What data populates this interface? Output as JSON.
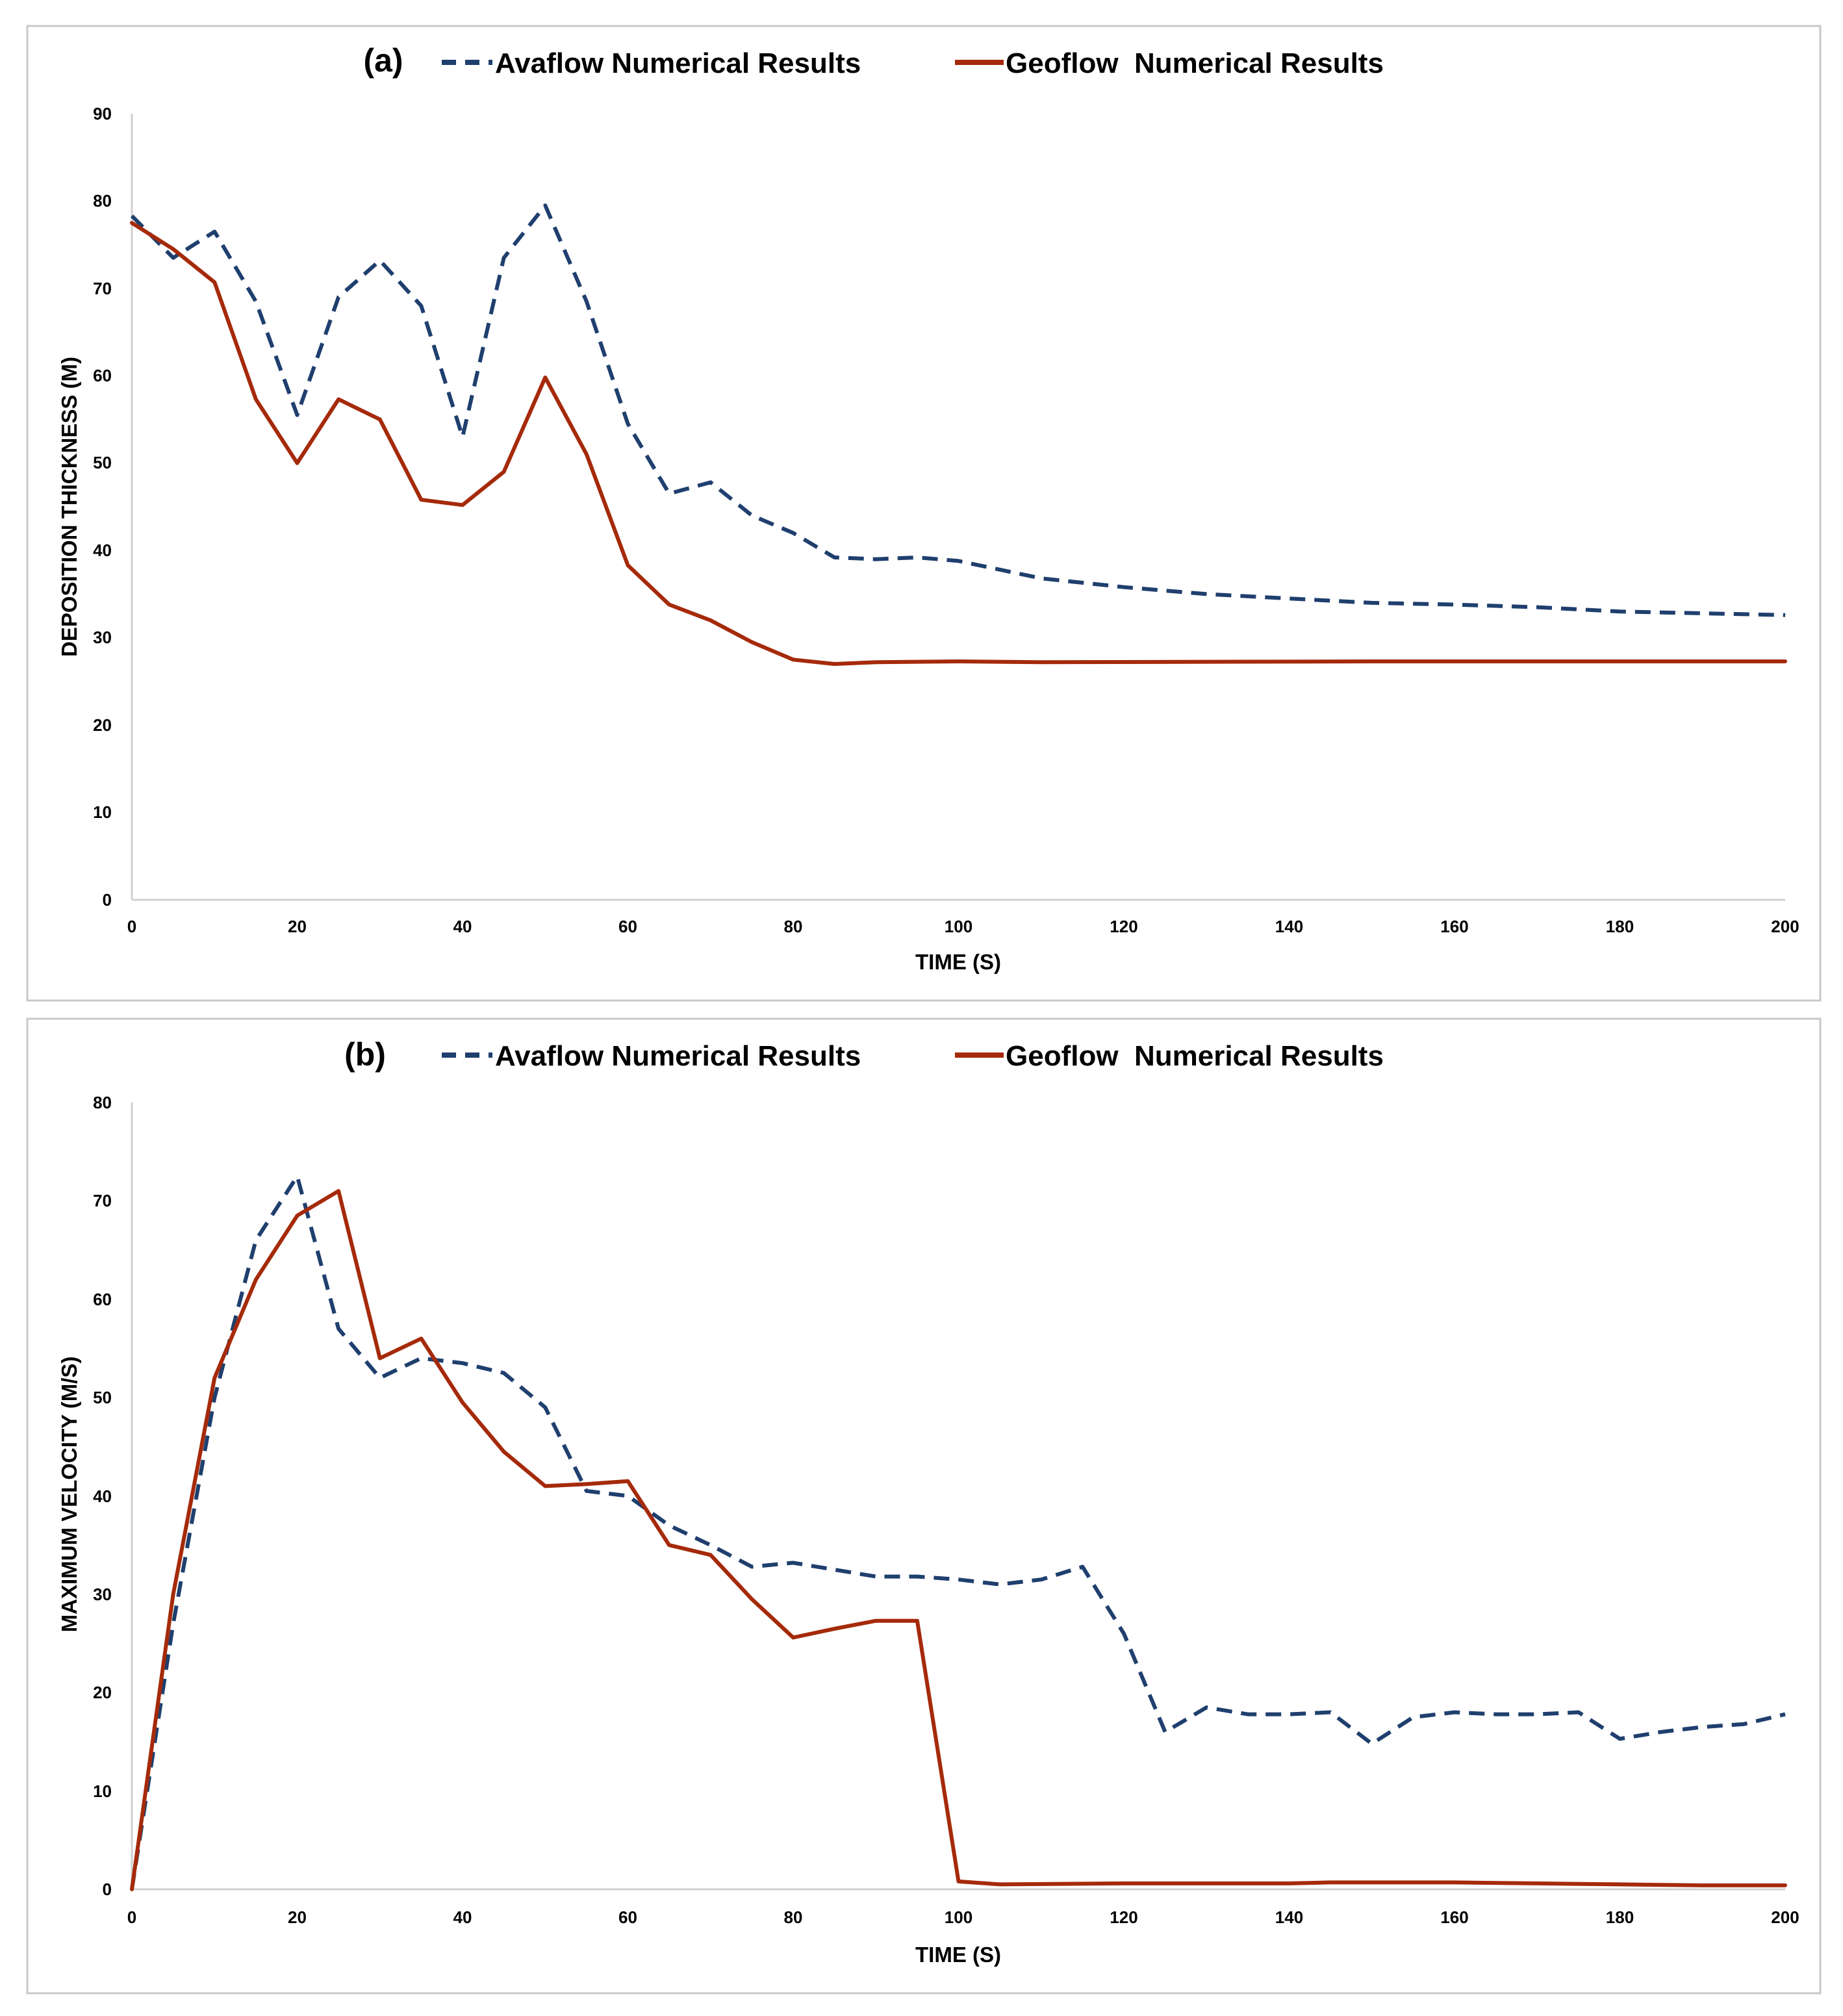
{
  "chart_data": [
    {
      "type": "line",
      "panel_label": "(a)",
      "xlabel": "TIME (S)",
      "ylabel": "DEPOSITION THICKNESS (M)",
      "xlim": [
        0,
        200
      ],
      "ylim": [
        0,
        90
      ],
      "x_ticks": [
        "0",
        "20",
        "40",
        "60",
        "80",
        "100",
        "120",
        "140",
        "160",
        "180",
        "200"
      ],
      "y_ticks": [
        "0",
        "10",
        "20",
        "30",
        "40",
        "50",
        "60",
        "70",
        "80",
        "90"
      ],
      "legend_position": "top",
      "grid": false,
      "series": [
        {
          "name": "Avaflow Numerical Results",
          "color": "#1f3f6e",
          "style": "dashed",
          "x": [
            0,
            5,
            10,
            15,
            20,
            25,
            30,
            35,
            40,
            45,
            50,
            55,
            60,
            65,
            70,
            75,
            80,
            85,
            90,
            95,
            100,
            110,
            120,
            130,
            140,
            150,
            160,
            170,
            180,
            190,
            200
          ],
          "y": [
            78.3,
            73.5,
            76.5,
            68.5,
            55.5,
            69,
            73.2,
            68,
            53,
            73.5,
            79.5,
            68.5,
            54.5,
            46.5,
            47.8,
            44,
            42,
            39.2,
            39,
            39.2,
            38.8,
            36.8,
            35.8,
            35,
            34.5,
            34,
            33.8,
            33.5,
            33,
            32.8,
            32.6
          ]
        },
        {
          "name": "Geoflow  Numerical Results",
          "color": "#a52a0a",
          "style": "solid",
          "x": [
            0,
            5,
            10,
            15,
            20,
            25,
            30,
            35,
            40,
            45,
            50,
            55,
            60,
            65,
            70,
            75,
            80,
            85,
            90,
            100,
            110,
            150,
            200
          ],
          "y": [
            77.5,
            74.5,
            70.7,
            57.3,
            50,
            57.3,
            55,
            45.8,
            45.2,
            49,
            59.8,
            51,
            38.3,
            33.8,
            32,
            29.5,
            27.5,
            27,
            27.2,
            27.3,
            27.2,
            27.3,
            27.3
          ]
        }
      ]
    },
    {
      "type": "line",
      "panel_label": "(b)",
      "xlabel": "TIME (S)",
      "ylabel": "MAXIMUM VELOCITY (M/S)",
      "xlim": [
        0,
        200
      ],
      "ylim": [
        0,
        80
      ],
      "x_ticks": [
        "0",
        "20",
        "40",
        "60",
        "80",
        "100",
        "120",
        "140",
        "160",
        "180",
        "200"
      ],
      "y_ticks": [
        "0",
        "10",
        "20",
        "30",
        "40",
        "50",
        "60",
        "70",
        "80"
      ],
      "legend_position": "top",
      "grid": false,
      "series": [
        {
          "name": "Avaflow Numerical Results",
          "color": "#1f3f6e",
          "style": "dashed",
          "x": [
            0,
            5,
            10,
            15,
            20,
            25,
            30,
            35,
            40,
            45,
            50,
            55,
            60,
            65,
            70,
            75,
            80,
            85,
            90,
            95,
            100,
            105,
            110,
            115,
            120,
            125,
            130,
            135,
            140,
            145,
            150,
            155,
            160,
            165,
            170,
            175,
            180,
            185,
            190,
            195,
            200
          ],
          "y": [
            0,
            27,
            50,
            66,
            72.5,
            57,
            52,
            54,
            53.5,
            52.5,
            49,
            40.5,
            40,
            37,
            35,
            32.8,
            33.2,
            32.5,
            31.8,
            31.8,
            31.5,
            31,
            31.5,
            32.8,
            26,
            16,
            18.5,
            17.8,
            17.8,
            18,
            14.8,
            17.5,
            18,
            17.8,
            17.8,
            18,
            15.3,
            16,
            16.5,
            16.8,
            17.8
          ]
        },
        {
          "name": "Geoflow  Numerical Results",
          "color": "#a52a0a",
          "style": "solid",
          "x": [
            0,
            5,
            10,
            15,
            20,
            25,
            30,
            35,
            40,
            45,
            50,
            55,
            60,
            65,
            70,
            75,
            80,
            85,
            90,
            95,
            100,
            105,
            120,
            140,
            145,
            160,
            170,
            180,
            190,
            200
          ],
          "y": [
            0,
            30,
            52,
            62,
            68.5,
            71,
            54,
            56,
            49.5,
            44.5,
            41,
            41.2,
            41.5,
            35,
            34,
            29.5,
            25.6,
            26.5,
            27.3,
            27.3,
            0.8,
            0.5,
            0.6,
            0.6,
            0.7,
            0.7,
            0.6,
            0.5,
            0.4,
            0.4
          ]
        }
      ]
    }
  ]
}
